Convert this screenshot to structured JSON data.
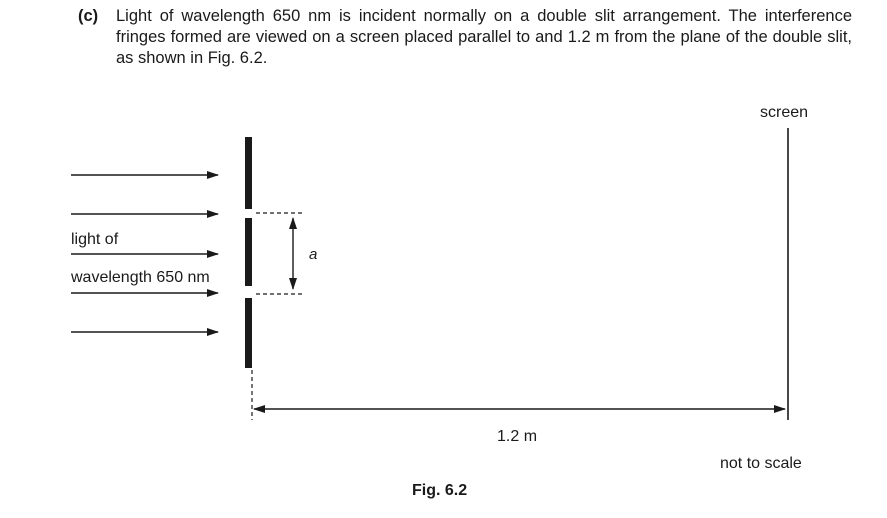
{
  "question": {
    "label": "(c)",
    "text": "Light of wavelength 650 nm is incident normally on a double slit arrangement. The interference fringes formed are viewed on a screen placed parallel to and 1.2 m from the plane of the double slit, as shown in Fig. 6.2."
  },
  "diagram": {
    "screen_label": "screen",
    "light_label_line1": "light of",
    "light_label_line2": "wavelength 650 nm",
    "slit_separation_label": "a",
    "distance_label": "1.2 m",
    "scale_note": "not to scale",
    "figure_caption": "Fig. 6.2"
  }
}
